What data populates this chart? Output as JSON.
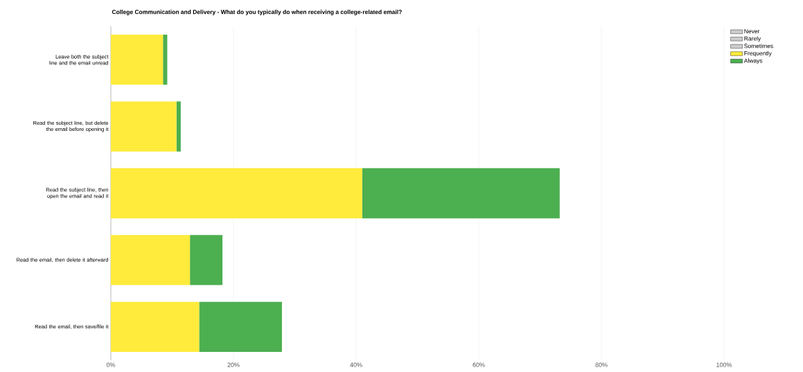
{
  "chart_data": {
    "type": "bar",
    "orientation": "horizontal",
    "stacked": true,
    "title": "College Communication and Delivery - What do you typically do when receiving a college-related email?",
    "categories": [
      "Leave both the subject line and the email unread",
      "Read the subject line, but delete the email before opening it",
      "Read the subject line, then open the email and read it",
      "Read the email, then delete it afterward",
      "Read the email, then save/file it"
    ],
    "series": [
      {
        "name": "Never",
        "color": "#cccccc",
        "values": [
          0,
          0,
          0,
          0,
          0
        ]
      },
      {
        "name": "Rarely",
        "color": "#cccccc",
        "values": [
          0,
          0,
          0,
          0,
          0
        ]
      },
      {
        "name": "Sometimes",
        "color": "#cccccc",
        "values": [
          0,
          0,
          0,
          0,
          0
        ]
      },
      {
        "name": "Frequently",
        "color": "#ffeb3b",
        "values": [
          8.5,
          10.7,
          41.0,
          12.9,
          14.4
        ]
      },
      {
        "name": "Always",
        "color": "#4caf50",
        "values": [
          0.7,
          0.7,
          32.2,
          5.3,
          13.5
        ]
      }
    ],
    "xlim": [
      0,
      100
    ],
    "xticks": [
      {
        "value": 0,
        "label": "0%"
      },
      {
        "value": 20,
        "label": "20%"
      },
      {
        "value": 40,
        "label": "40%"
      },
      {
        "value": 60,
        "label": "60%"
      },
      {
        "value": 80,
        "label": "80%"
      },
      {
        "value": 100,
        "label": "100%"
      }
    ],
    "grid": "x",
    "legend": "top right"
  }
}
